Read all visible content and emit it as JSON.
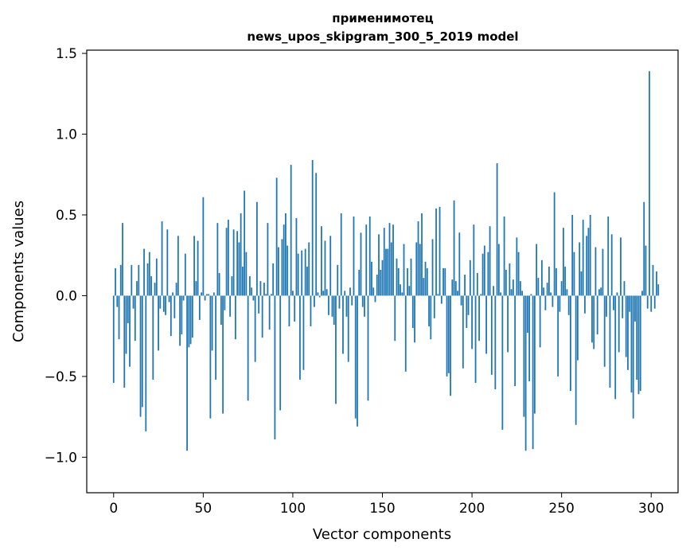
{
  "chart_data": {
    "type": "bar",
    "title_line1": "применимотец",
    "title_line2": "news_upos_skipgram_300_5_2019 model",
    "xlabel": "Vector components",
    "ylabel": "Components values",
    "xlim": [
      -15,
      315
    ],
    "ylim": [
      -1.22,
      1.52
    ],
    "xticks": [
      0,
      50,
      100,
      150,
      200,
      250,
      300
    ],
    "xtick_labels": [
      "0",
      "50",
      "100",
      "150",
      "200",
      "250",
      "300"
    ],
    "yticks": [
      -1.0,
      -0.5,
      0.0,
      0.5,
      1.0,
      1.5
    ],
    "ytick_labels": [
      "−1.0",
      "−0.5",
      "0.0",
      "0.5",
      "1.0",
      "1.5"
    ],
    "grid": false,
    "bar_color": "#1f77b4",
    "values": [
      -0.54,
      0.17,
      -0.07,
      -0.27,
      0.19,
      0.45,
      -0.57,
      -0.36,
      -0.17,
      -0.44,
      0.19,
      -0.08,
      -0.28,
      0.09,
      0.19,
      -0.75,
      -0.69,
      0.29,
      -0.84,
      0.2,
      0.27,
      0.12,
      -0.52,
      0.08,
      0.23,
      -0.34,
      -0.08,
      0.46,
      -0.1,
      -0.12,
      0.41,
      -0.04,
      -0.25,
      0.02,
      -0.14,
      0.08,
      0.37,
      -0.31,
      -0.24,
      -0.03,
      0.26,
      -0.96,
      -0.32,
      -0.3,
      -0.26,
      0.37,
      0.09,
      0.34,
      -0.15,
      0.02,
      0.61,
      -0.03,
      0.01,
      0.01,
      -0.76,
      -0.34,
      0.02,
      -0.52,
      0.45,
      0.14,
      -0.18,
      -0.73,
      -0.09,
      0.42,
      0.47,
      -0.13,
      0.12,
      0.41,
      -0.27,
      0.4,
      0.33,
      0.51,
      0.18,
      0.65,
      0.27,
      -0.65,
      0.12,
      0.05,
      -0.03,
      -0.41,
      0.58,
      -0.11,
      0.09,
      -0.26,
      0.08,
      0.01,
      0.45,
      -0.21,
      0.01,
      0.2,
      -0.89,
      0.73,
      0.3,
      -0.71,
      0.35,
      0.44,
      0.51,
      0.31,
      -0.19,
      0.81,
      0.03,
      -0.16,
      0.48,
      0.26,
      -0.52,
      0.28,
      -0.46,
      0.29,
      0.18,
      0.33,
      -0.19,
      0.84,
      -0.07,
      0.76,
      0.02,
      -0.01,
      0.43,
      0.03,
      0.34,
      0.04,
      -0.12,
      0.37,
      -0.13,
      -0.18,
      -0.67,
      0.19,
      -0.08,
      0.51,
      -0.36,
      0.03,
      -0.13,
      -0.41,
      0.05,
      -0.06,
      0.49,
      -0.76,
      -0.81,
      0.16,
      0.39,
      -0.07,
      -0.13,
      0.44,
      -0.65,
      0.49,
      0.21,
      0.05,
      -0.04,
      0.13,
      0.38,
      0.16,
      0.22,
      0.42,
      0.29,
      0.29,
      0.45,
      0.33,
      0.44,
      -0.28,
      0.23,
      0.17,
      0.07,
      0.02,
      0.32,
      -0.47,
      0.17,
      0.06,
      0.23,
      -0.2,
      -0.29,
      0.33,
      0.46,
      0.32,
      0.51,
      0.11,
      0.21,
      0.17,
      -0.19,
      -0.27,
      0.35,
      -0.14,
      0.54,
      0.01,
      0.55,
      -0.05,
      0.17,
      0.17,
      -0.5,
      -0.48,
      -0.62,
      0.1,
      0.59,
      0.09,
      0.03,
      0.39,
      -0.06,
      -0.45,
      0.13,
      -0.2,
      -0.12,
      0.22,
      -0.33,
      0.44,
      -0.54,
      0.14,
      -0.28,
      0.01,
      0.26,
      0.31,
      -0.36,
      0.27,
      0.43,
      -0.49,
      0.06,
      -0.58,
      0.82,
      0.32,
      0.02,
      -0.83,
      0.49,
      0.16,
      -0.35,
      0.2,
      0.04,
      0.1,
      -0.56,
      0.36,
      0.27,
      0.09,
      0.03,
      -0.75,
      -0.96,
      -0.23,
      -0.53,
      0.01,
      -0.95,
      -0.73,
      0.32,
      0.11,
      -0.32,
      0.22,
      0.05,
      -0.09,
      0.08,
      0.18,
      0.02,
      -0.07,
      0.64,
      0.17,
      -0.5,
      -0.1,
      0.09,
      0.42,
      0.18,
      0.04,
      -0.12,
      -0.59,
      0.5,
      0.27,
      -0.8,
      -0.4,
      0.33,
      0.15,
      0.47,
      -0.11,
      0.37,
      0.42,
      0.5,
      -0.29,
      -0.33,
      0.3,
      -0.24,
      0.04,
      0.05,
      0.29,
      -0.44,
      -0.13,
      0.49,
      -0.57,
      0.38,
      -0.09,
      -0.64,
      0.02,
      -0.35,
      0.36,
      -0.14,
      0.09,
      -0.38,
      -0.46,
      -0.1,
      -0.6,
      -0.76,
      -0.16,
      -0.52,
      -0.61,
      -0.59,
      0.03,
      0.58,
      0.31,
      -0.08,
      1.39,
      -0.1,
      0.19,
      -0.08,
      0.15,
      0.07,
      0.0,
      0.0
    ]
  }
}
